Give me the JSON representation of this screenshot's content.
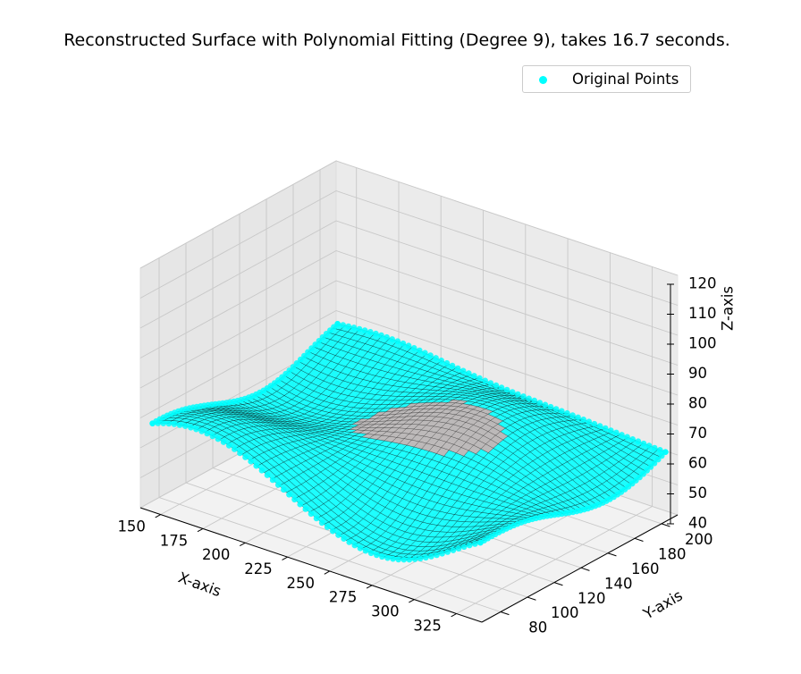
{
  "chart_data": {
    "type": "surface3d",
    "title": "Reconstructed Surface with Polynomial Fitting (Degree 9), takes 16.7 seconds.",
    "xlabel": "X-axis",
    "ylabel": "Y-axis",
    "zlabel": "Z-axis",
    "x_ticks": [
      150,
      175,
      200,
      225,
      250,
      275,
      300,
      325
    ],
    "y_ticks": [
      80,
      100,
      120,
      140,
      160,
      180,
      200
    ],
    "z_ticks": [
      40,
      50,
      60,
      70,
      80,
      90,
      100,
      110,
      120
    ],
    "xlim": [
      138,
      340
    ],
    "ylim": [
      66,
      212
    ],
    "zlim": [
      40,
      120
    ],
    "grid": true,
    "legend": {
      "position": "top-right",
      "entries": [
        "Original Points"
      ]
    },
    "series": [
      {
        "name": "Original Points",
        "kind": "scatter",
        "color": "#00ffff"
      }
    ],
    "surface": {
      "color": "#00ffff",
      "edge_color": "#000000",
      "base_z": 62,
      "z_range_approx": [
        48,
        92
      ]
    },
    "hole": {
      "fill": "#b9b6b6"
    }
  }
}
